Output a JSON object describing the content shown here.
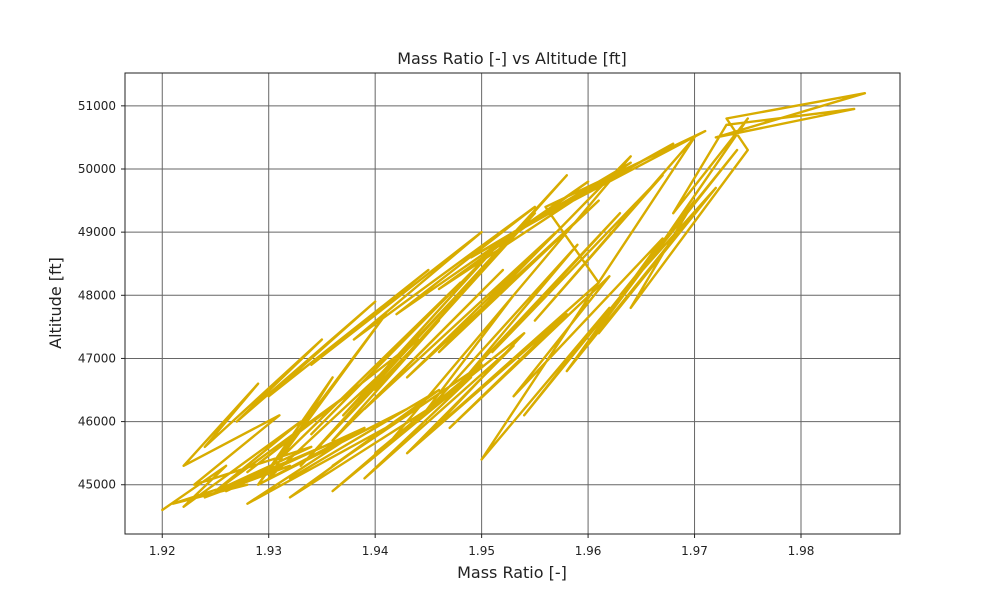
{
  "chart_data": {
    "type": "line",
    "title": "Mass Ratio [-] vs Altitude [ft]",
    "xlabel": "Mass Ratio [-]",
    "ylabel": "Altitude [ft]",
    "xlim": [
      1.9165,
      1.9893
    ],
    "ylim": [
      44220,
      51520
    ],
    "x_ticks": [
      1.92,
      1.93,
      1.94,
      1.95,
      1.96,
      1.97,
      1.98
    ],
    "x_tick_labels": [
      "1.92",
      "1.93",
      "1.94",
      "1.95",
      "1.96",
      "1.97",
      "1.98"
    ],
    "y_ticks": [
      45000,
      46000,
      47000,
      48000,
      49000,
      50000,
      51000
    ],
    "y_tick_labels": [
      "45000",
      "46000",
      "47000",
      "48000",
      "49000",
      "50000",
      "51000"
    ],
    "grid": true,
    "series": [
      {
        "color": "#d8ac00",
        "x": [
          1.92,
          1.926,
          1.922,
          1.933,
          1.925,
          1.938,
          1.928,
          1.944,
          1.93,
          1.936,
          1.929,
          1.941,
          1.931,
          1.948,
          1.934,
          1.951,
          1.937,
          1.955,
          1.94,
          1.958,
          1.933,
          1.946,
          1.936,
          1.952,
          1.939,
          1.957,
          1.943,
          1.961,
          1.946,
          1.964,
          1.941,
          1.953,
          1.944,
          1.959,
          1.948,
          1.963,
          1.951,
          1.967,
          1.955,
          1.97,
          1.95,
          1.962,
          1.954,
          1.966,
          1.958,
          1.969,
          1.961,
          1.972,
          1.963,
          1.974,
          1.966,
          1.975,
          1.968,
          1.973,
          1.985,
          1.972,
          1.986,
          1.973,
          1.975,
          1.964,
          1.97,
          1.958,
          1.967,
          1.953,
          1.962,
          1.947,
          1.958,
          1.943,
          1.953,
          1.939,
          1.949,
          1.936,
          1.945,
          1.932,
          1.941,
          1.928,
          1.938,
          1.925,
          1.934,
          1.923,
          1.931,
          1.922,
          1.929,
          1.924,
          1.935,
          1.927,
          1.94,
          1.93,
          1.945,
          1.934,
          1.95,
          1.938,
          1.955,
          1.942,
          1.96,
          1.946,
          1.964,
          1.949,
          1.968,
          1.953,
          1.971,
          1.956,
          1.961,
          1.945,
          1.954,
          1.94,
          1.95,
          1.936,
          1.946,
          1.932,
          1.943,
          1.929,
          1.939,
          1.926,
          1.935,
          1.924,
          1.932,
          1.921,
          1.928
        ],
        "y": [
          44600,
          45300,
          44650,
          46000,
          44900,
          46500,
          45200,
          47300,
          45100,
          46700,
          45000,
          47700,
          45400,
          48200,
          45800,
          48700,
          46100,
          49300,
          46500,
          49900,
          45300,
          47600,
          45700,
          48400,
          46200,
          49000,
          46700,
          49500,
          47100,
          50200,
          45600,
          48000,
          46000,
          48800,
          46600,
          49300,
          47100,
          49900,
          47600,
          50500,
          45400,
          47800,
          46100,
          48600,
          46800,
          49100,
          47400,
          49700,
          48000,
          50300,
          48600,
          50800,
          49300,
          50700,
          50950,
          50500,
          51200,
          50800,
          50300,
          47800,
          49500,
          46800,
          48900,
          46400,
          48300,
          45900,
          47700,
          45500,
          47200,
          45100,
          46700,
          44900,
          46200,
          44800,
          45900,
          44700,
          45800,
          44900,
          45600,
          45000,
          46100,
          45300,
          46600,
          45600,
          47300,
          46000,
          47900,
          46400,
          48400,
          46900,
          49000,
          47300,
          49400,
          47700,
          49800,
          48100,
          50100,
          48600,
          50400,
          49000,
          50600,
          49400,
          48200,
          45800,
          47400,
          45500,
          46900,
          45300,
          46500,
          45100,
          46200,
          45000,
          45900,
          44900,
          45600,
          44800,
          45300,
          44700,
          45000
        ]
      }
    ]
  }
}
